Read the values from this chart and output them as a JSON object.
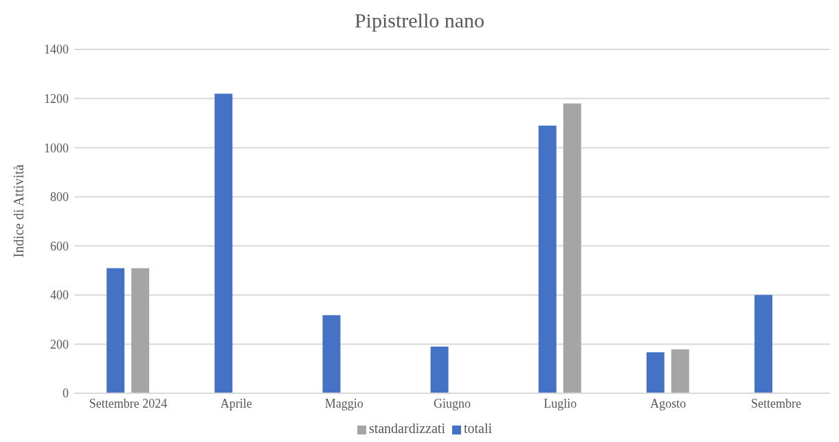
{
  "chart_data": {
    "type": "bar",
    "title": "Pipistrello nano",
    "ylabel": "Indice di Attività",
    "categories": [
      "Settembre 2024",
      "Aprile",
      "Maggio",
      "Giugno",
      "Luglio",
      "Agosto",
      "Settembre"
    ],
    "series": [
      {
        "name": "totali",
        "color": "#4472c4",
        "values": [
          509,
          1220,
          318,
          190,
          1090,
          167,
          400
        ]
      },
      {
        "name": "standardizzati",
        "color": "#a5a5a5",
        "values": [
          509,
          null,
          null,
          null,
          1180,
          179,
          null
        ]
      }
    ],
    "ylim": [
      0,
      1400
    ],
    "yticks": [
      0,
      200,
      400,
      600,
      800,
      1000,
      1200,
      1400
    ],
    "grid": "y",
    "legend": "bottom"
  }
}
